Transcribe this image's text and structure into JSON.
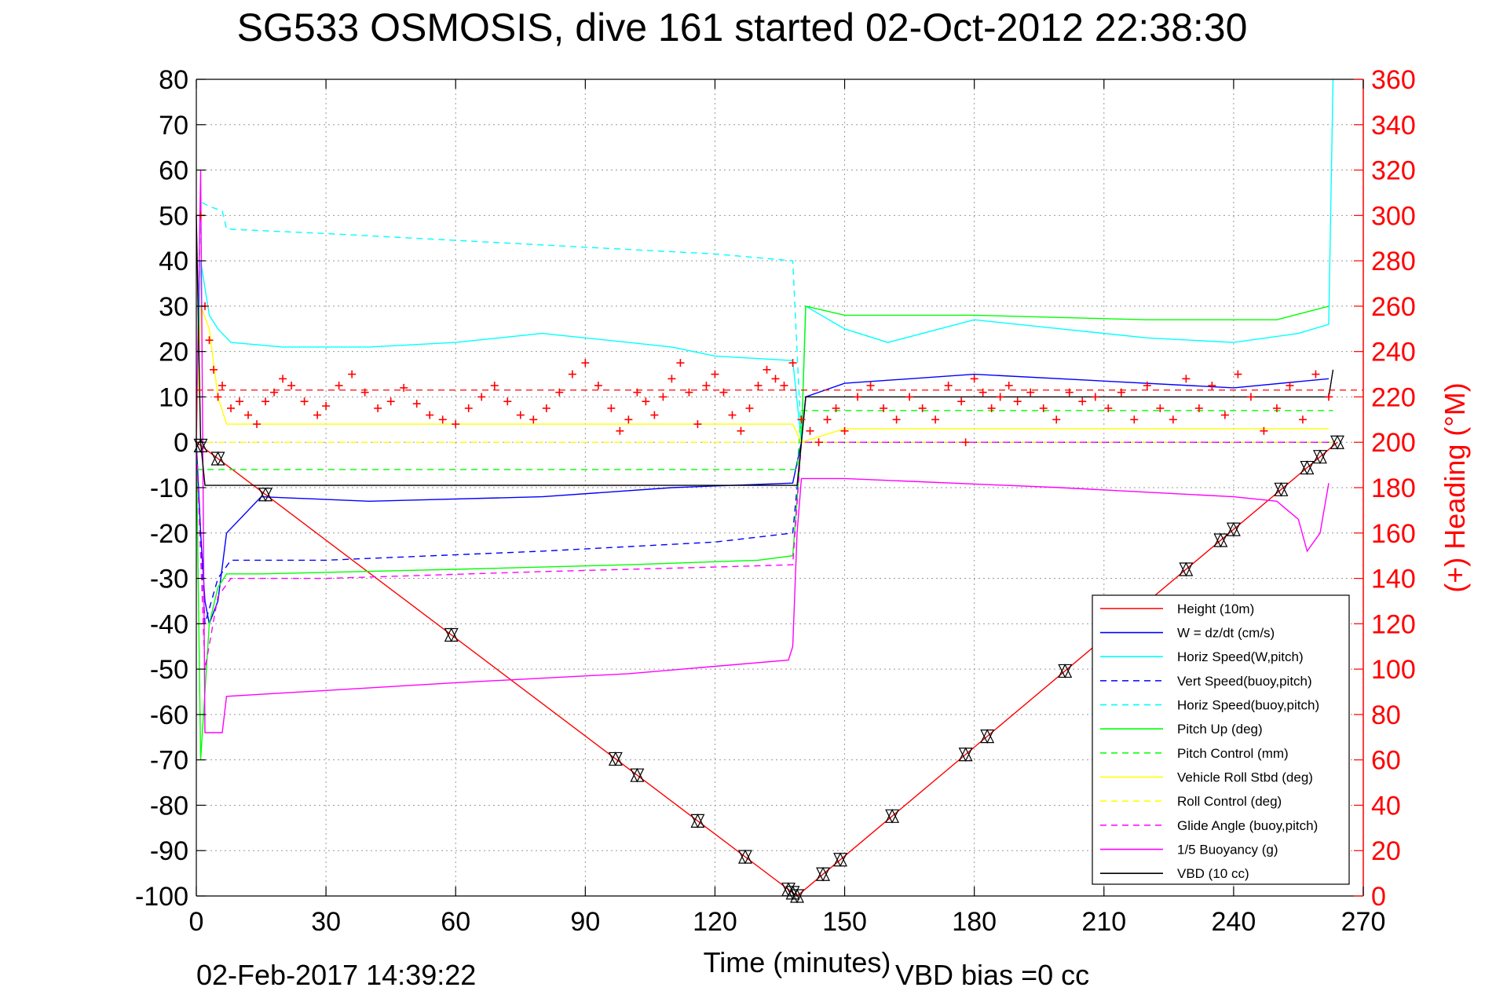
{
  "chart_data": {
    "type": "line",
    "title": "SG533 OSMOSIS, dive 161 started 02-Oct-2012 22:38:30",
    "xlabel": "Time (minutes)",
    "ylabel_right": "(+) Heading (°M)",
    "footer_date": "02-Feb-2017 14:39:22",
    "footer_note": "VBD bias =0 cc",
    "xlim": [
      0,
      270
    ],
    "ylim": [
      -100,
      80
    ],
    "ylim_right": [
      0,
      360
    ],
    "x_ticks": [
      "0",
      "30",
      "60",
      "90",
      "120",
      "150",
      "180",
      "210",
      "240",
      "270"
    ],
    "y_ticks": [
      "80",
      "70",
      "60",
      "50",
      "40",
      "30",
      "20",
      "10",
      "0",
      "-10",
      "-20",
      "-30",
      "-40",
      "-50",
      "-60",
      "-70",
      "-80",
      "-90",
      "-100"
    ],
    "y_ticks_right": [
      "360",
      "340",
      "320",
      "300",
      "280",
      "260",
      "240",
      "220",
      "200",
      "180",
      "160",
      "140",
      "120",
      "100",
      "80",
      "60",
      "40",
      "20",
      "0"
    ],
    "grid": true,
    "legend_position": "bottom-right",
    "series": [
      {
        "name": "Height (10m)",
        "color": "#ff0000",
        "style": "solid",
        "x": [
          0,
          139,
          264
        ],
        "y": [
          0,
          -100,
          0
        ]
      },
      {
        "name": "W = dz/dt (cm/s)",
        "color": "#0000ff",
        "style": "solid",
        "x": [
          0,
          1,
          2,
          3,
          5,
          7,
          15,
          40,
          80,
          110,
          138,
          140,
          141,
          150,
          180,
          240,
          262
        ],
        "y": [
          0,
          -20,
          -35,
          -40,
          -35,
          -20,
          -12,
          -13,
          -12,
          -10,
          -9,
          0,
          10,
          13,
          15,
          12,
          14
        ]
      },
      {
        "name": "Horiz Speed(W,pitch)",
        "color": "#00ffff",
        "style": "solid",
        "x": [
          0,
          1,
          3,
          5,
          8,
          20,
          40,
          60,
          70,
          80,
          90,
          100,
          110,
          120,
          138,
          140,
          141,
          150,
          160,
          180,
          200,
          220,
          240,
          255,
          262,
          263
        ],
        "y": [
          0,
          40,
          28,
          25,
          22,
          21,
          21,
          22,
          23,
          24,
          23,
          22,
          21,
          19,
          18,
          0,
          30,
          25,
          22,
          27,
          25,
          23,
          22,
          24,
          26,
          80
        ]
      },
      {
        "name": "Vert Speed(buoy,pitch)",
        "color": "#0000ff",
        "style": "dashed",
        "x": [
          0,
          2,
          5,
          8,
          30,
          80,
          120,
          138,
          140,
          263
        ],
        "y": [
          0,
          -40,
          -30,
          -26,
          -26,
          -24,
          -22,
          -20,
          0,
          0
        ]
      },
      {
        "name": "Horiz Speed(buoy,pitch)",
        "color": "#00ffff",
        "style": "dashed",
        "x": [
          0,
          1,
          3,
          6,
          7,
          30,
          60,
          90,
          120,
          138,
          140,
          263
        ],
        "y": [
          0,
          53,
          52,
          51,
          47,
          46,
          44.5,
          43,
          41.5,
          40,
          0,
          0
        ]
      },
      {
        "name": "Pitch Up (deg)",
        "color": "#00ff00",
        "style": "solid",
        "x": [
          0,
          1,
          3,
          5,
          7,
          15,
          60,
          100,
          130,
          138,
          140,
          141,
          150,
          180,
          220,
          250,
          262
        ],
        "y": [
          0,
          -70,
          -40,
          -32,
          -29,
          -29,
          -28,
          -27,
          -26,
          -25,
          0,
          30,
          28,
          28,
          27,
          27,
          30
        ]
      },
      {
        "name": "Pitch Control (mm)",
        "color": "#00ff00",
        "style": "dashed",
        "x": [
          0,
          2,
          139,
          140,
          263
        ],
        "y": [
          -6,
          -6,
          -6,
          7,
          7
        ]
      },
      {
        "name": "Vehicle Roll Stbd (deg)",
        "color": "#ffff00",
        "style": "solid",
        "x": [
          0,
          1,
          3,
          5,
          7,
          30,
          60,
          90,
          120,
          138,
          140,
          150,
          180,
          210,
          240,
          262
        ],
        "y": [
          0,
          30,
          25,
          10,
          4,
          4,
          4,
          4,
          4,
          4,
          0,
          3,
          3,
          3,
          3,
          3
        ]
      },
      {
        "name": "Roll Control (deg)",
        "color": "#ffff00",
        "style": "dashed",
        "x": [
          0,
          263
        ],
        "y": [
          0,
          0
        ]
      },
      {
        "name": "Glide Angle (buoy,pitch)",
        "color": "#ff00ff",
        "style": "dashed",
        "x": [
          0,
          2,
          5,
          8,
          30,
          80,
          120,
          138,
          140,
          263
        ],
        "y": [
          0,
          -50,
          -34,
          -30,
          -30,
          -28.5,
          -27.5,
          -27,
          0,
          0
        ]
      },
      {
        "name": "1/5 Buoyancy (g)",
        "color": "#ff00ff",
        "style": "solid",
        "x": [
          0,
          1,
          2,
          6,
          7,
          60,
          100,
          137,
          138,
          139,
          140,
          150,
          200,
          240,
          250,
          255,
          257,
          260,
          262
        ],
        "y": [
          0,
          60,
          -64,
          -64,
          -56,
          -53,
          -51,
          -48,
          -45,
          -20,
          -8,
          -8,
          -10,
          -12,
          -13,
          -17,
          -24,
          -20,
          -9
        ]
      },
      {
        "name": "VBD (10 cc)",
        "color": "#000000",
        "style": "solid",
        "x": [
          0,
          1,
          2,
          139,
          140,
          141,
          262,
          263
        ],
        "y": [
          50,
          0,
          -9.5,
          -9.5,
          0,
          10,
          10,
          16
        ]
      }
    ],
    "heading": {
      "name": "Heading",
      "color": "#ff0000",
      "mean_heading": 223,
      "x": [
        1,
        2,
        3,
        4,
        5,
        6,
        8,
        10,
        12,
        14,
        16,
        18,
        20,
        22,
        25,
        28,
        30,
        33,
        36,
        39,
        42,
        45,
        48,
        51,
        54,
        57,
        60,
        63,
        66,
        69,
        72,
        75,
        78,
        81,
        84,
        87,
        90,
        93,
        96,
        98,
        100,
        102,
        104,
        106,
        108,
        110,
        112,
        114,
        116,
        118,
        120,
        122,
        124,
        126,
        128,
        130,
        132,
        134,
        136,
        138,
        140,
        142,
        144,
        146,
        148,
        150,
        153,
        156,
        159,
        162,
        165,
        168,
        171,
        174,
        177,
        178,
        180,
        182,
        184,
        186,
        188,
        190,
        193,
        196,
        199,
        202,
        205,
        208,
        211,
        214,
        217,
        220,
        223,
        226,
        229,
        232,
        235,
        238,
        241,
        244,
        247,
        250,
        253,
        256,
        259,
        262
      ],
      "y": [
        300,
        260,
        245,
        232,
        220,
        225,
        215,
        218,
        212,
        208,
        218,
        222,
        228,
        225,
        218,
        212,
        216,
        225,
        230,
        222,
        215,
        218,
        224,
        217,
        212,
        210,
        208,
        215,
        220,
        225,
        218,
        212,
        210,
        215,
        222,
        230,
        235,
        225,
        215,
        205,
        210,
        222,
        218,
        212,
        220,
        228,
        235,
        222,
        208,
        225,
        230,
        222,
        212,
        205,
        215,
        225,
        232,
        228,
        225,
        235,
        210,
        205,
        200,
        210,
        215,
        205,
        220,
        225,
        215,
        210,
        220,
        215,
        210,
        225,
        218,
        200,
        228,
        222,
        215,
        220,
        225,
        218,
        222,
        215,
        210,
        222,
        218,
        220,
        215,
        222,
        210,
        225,
        215,
        210,
        228,
        215,
        225,
        212,
        230,
        220,
        205,
        215,
        225,
        210,
        230,
        220
      ]
    },
    "markers": {
      "note": "profile markers on Height (10m)",
      "x": [
        1,
        5,
        16,
        59,
        97,
        102,
        116,
        127,
        137,
        138,
        139,
        145,
        149,
        161,
        178,
        183,
        201,
        219,
        229,
        237,
        240,
        251,
        257,
        260,
        264
      ]
    }
  }
}
